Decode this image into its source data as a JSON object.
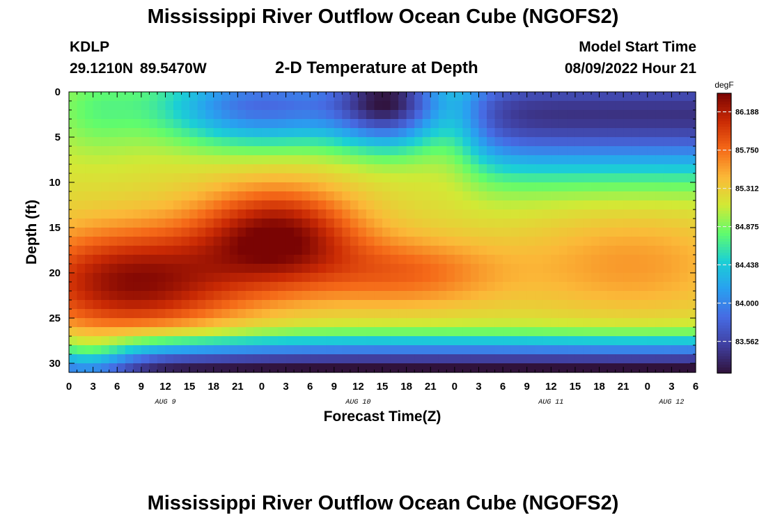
{
  "header": {
    "title": "Mississippi River Outflow Ocean Cube (NGOFS2)",
    "station_id": "KDLP",
    "station_coords": "29.1210N  89.5470W",
    "subtitle": "2-D Temperature at Depth",
    "model_start_label": "Model Start Time",
    "model_start_value": "08/09/2022 Hour 21"
  },
  "footer": {
    "title": "Mississippi River Outflow Ocean Cube (NGOFS2)"
  },
  "chart_data": {
    "type": "heatmap",
    "xlabel": "Forecast Time(Z)",
    "ylabel": "Depth (ft)",
    "units": "degF",
    "x_range_hours": [
      0,
      78
    ],
    "y_range": [
      0,
      31
    ],
    "y_inverted": true,
    "x_ticks": [
      "0",
      "3",
      "6",
      "9",
      "12",
      "15",
      "18",
      "21",
      "0",
      "3",
      "6",
      "9",
      "12",
      "15",
      "18",
      "21",
      "0",
      "3",
      "6",
      "9",
      "12",
      "15",
      "18",
      "21",
      "0",
      "3",
      "6"
    ],
    "y_ticks": [
      0,
      5,
      10,
      15,
      20,
      25,
      30
    ],
    "day_labels": [
      {
        "label": "AUG 9",
        "hour": 12
      },
      {
        "label": "AUG 10",
        "hour": 36
      },
      {
        "label": "AUG 11",
        "hour": 60
      },
      {
        "label": "AUG 12",
        "hour": 75
      }
    ],
    "colorbar_ticks": [
      "86.188",
      "85.750",
      "85.312",
      "84.875",
      "84.438",
      "84.000",
      "83.562"
    ],
    "colorbar_range": [
      83.2,
      86.4
    ],
    "grid": {
      "nx": 78,
      "ny": 31
    },
    "field_notes": "Temperature field: warm core (>86 degF) centered near 15-24 ft depth from hour 0 to ~hour 30, cool layer (<84.2 degF) near surface hours ~45-78 and at the bottom (~29-31 ft) throughout."
  }
}
